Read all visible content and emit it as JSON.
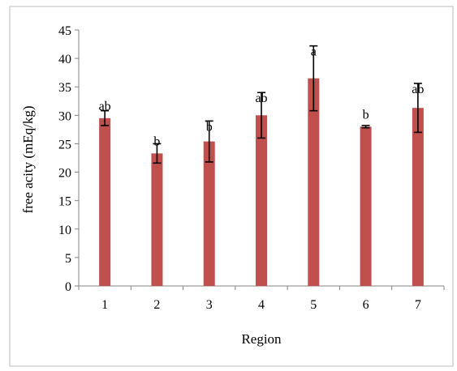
{
  "chart_data": {
    "type": "bar",
    "title": "",
    "xlabel": "Region",
    "ylabel": "free acity (mEq/kg)",
    "categories": [
      "1",
      "2",
      "3",
      "4",
      "5",
      "6",
      "7"
    ],
    "series": [
      {
        "values": [
          29.5,
          23.3,
          25.4,
          30.0,
          36.5,
          28.0,
          31.3
        ],
        "errors": [
          1.3,
          1.7,
          3.6,
          4.0,
          5.7,
          0.2,
          4.3
        ],
        "letters": [
          "ab",
          "b",
          "b",
          "ab",
          "a",
          "b",
          "ab"
        ]
      }
    ],
    "ylim": [
      0,
      45
    ],
    "yticks": [
      "0",
      "5",
      "10",
      "15",
      "20",
      "25",
      "30",
      "35",
      "40",
      "45"
    ],
    "grid": false,
    "legend": "none",
    "colors": {
      "bar": "#c0504d",
      "axis": "#868686",
      "frame": "#bdbdbd"
    }
  }
}
